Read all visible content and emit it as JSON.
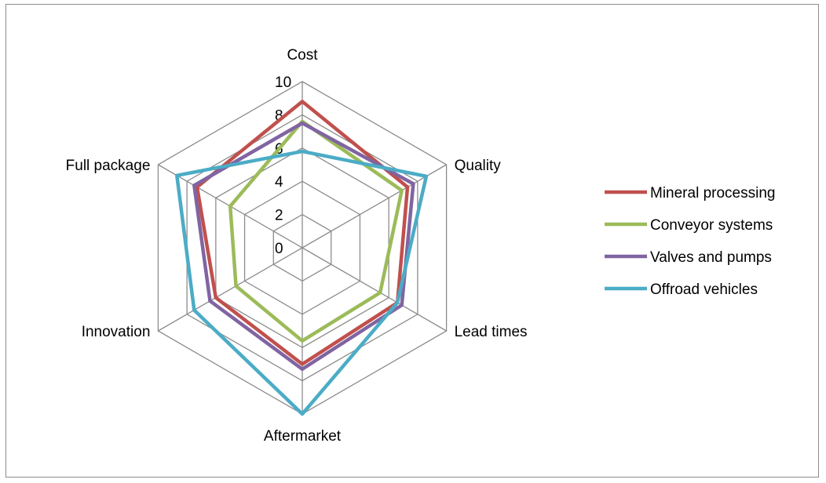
{
  "chart_data": {
    "type": "radar",
    "title": "",
    "categories": [
      "Cost",
      "Quality",
      "Lead times",
      "Aftermarket",
      "Innovation",
      "Full package"
    ],
    "rlim": [
      0,
      10
    ],
    "r_ticks": [
      0,
      2,
      4,
      6,
      8,
      10
    ],
    "grid": true,
    "legend": "right",
    "series": [
      {
        "name": "Mineral processing",
        "color": "#c0504d",
        "values": [
          8.8,
          7.3,
          6.6,
          7.0,
          6.0,
          7.3
        ]
      },
      {
        "name": "Conveyor systems",
        "color": "#9bbb59",
        "values": [
          7.6,
          6.9,
          5.4,
          5.6,
          4.6,
          5.0
        ]
      },
      {
        "name": "Valves and pumps",
        "color": "#8064a2",
        "values": [
          7.5,
          7.7,
          6.9,
          7.3,
          6.4,
          7.5
        ]
      },
      {
        "name": "Offroad vehicles",
        "color": "#4bacc6",
        "values": [
          5.8,
          8.6,
          6.6,
          10.0,
          7.5,
          8.7
        ]
      }
    ]
  }
}
